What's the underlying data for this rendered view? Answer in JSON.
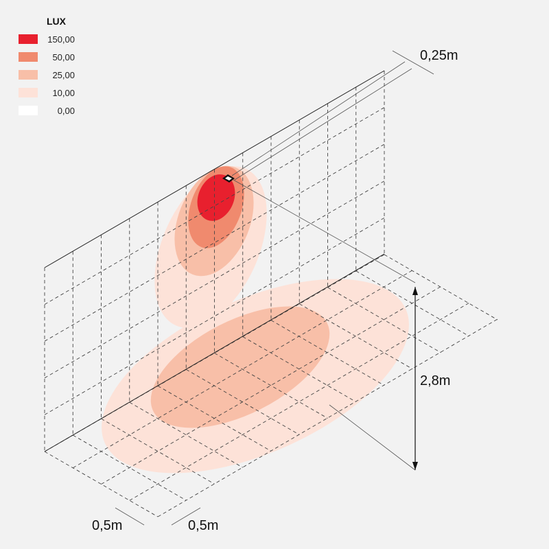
{
  "legend": {
    "title": "LUX",
    "items": [
      {
        "label": "150,00",
        "color": "#e8202e"
      },
      {
        "label": "50,00",
        "color": "#f08a6e"
      },
      {
        "label": "25,00",
        "color": "#f8bfa8"
      },
      {
        "label": "10,00",
        "color": "#fde2d8"
      },
      {
        "label": "0,00",
        "color": "#ffffff"
      }
    ]
  },
  "dimensions": {
    "offset": "0,25m",
    "height": "2,8m",
    "grid_x": "0,5m",
    "grid_y": "0,5m"
  }
}
